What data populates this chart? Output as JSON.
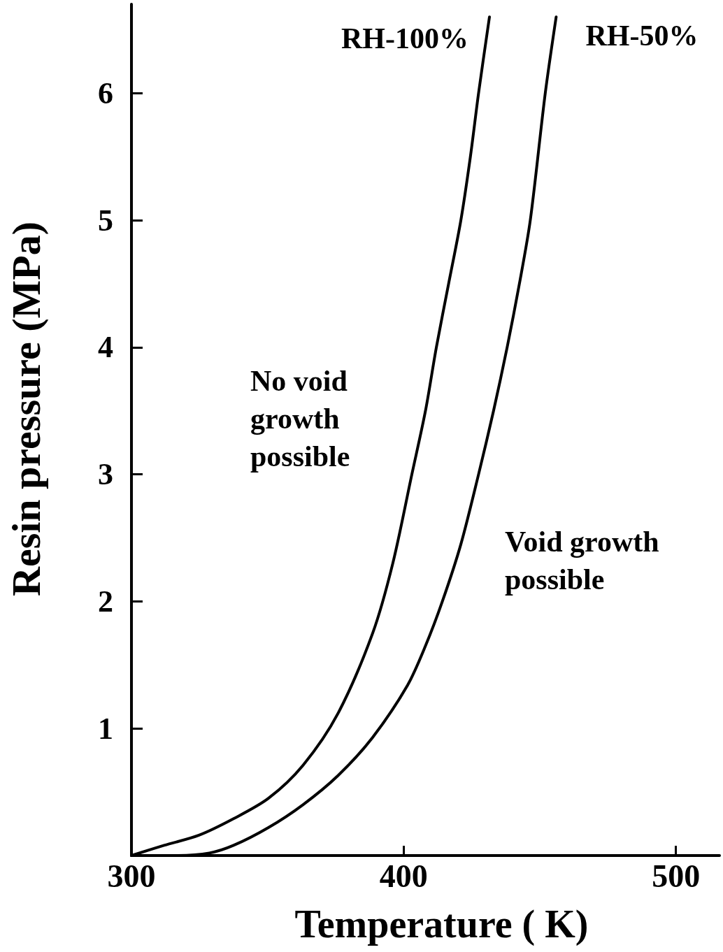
{
  "chart_data": {
    "type": "line",
    "xlabel": "Temperature ( K)",
    "ylabel": "Resin pressure (MPa)",
    "xlim": [
      300,
      516
    ],
    "ylim": [
      0,
      6.7
    ],
    "xticks": [
      300,
      400,
      500
    ],
    "yticks": [
      1,
      2,
      3,
      4,
      5,
      6
    ],
    "marker": "none",
    "line_style": "solid",
    "annotations": [
      "No void growth possible",
      "Void growth possible"
    ],
    "series": [
      {
        "name": "RH-100%",
        "color": "#000000",
        "x": [
          300,
          312,
          324.8,
          337.5,
          350.3,
          363,
          375.9,
          388.6,
          396,
          403,
          408,
          412,
          416.5,
          421,
          424.5,
          427.5,
          431.5
        ],
        "values": [
          0,
          0.08,
          0.16,
          0.29,
          0.45,
          0.71,
          1.12,
          1.75,
          2.3,
          3.0,
          3.5,
          4.0,
          4.5,
          5.0,
          5.5,
          6.0,
          6.6
        ]
      },
      {
        "name": "RH-50%",
        "color": "#000000",
        "x": [
          300,
          315,
          328.6,
          337.5,
          350.3,
          363,
          375.9,
          388.6,
          401.4,
          408,
          414.2,
          421,
          427.5,
          433,
          438,
          442.5,
          446.5,
          452,
          456
        ],
        "values": [
          0,
          0,
          0.02,
          0.08,
          0.22,
          0.4,
          0.63,
          0.93,
          1.34,
          1.65,
          2.0,
          2.45,
          3.0,
          3.5,
          4.0,
          4.5,
          5.0,
          6.0,
          6.6
        ]
      }
    ]
  }
}
